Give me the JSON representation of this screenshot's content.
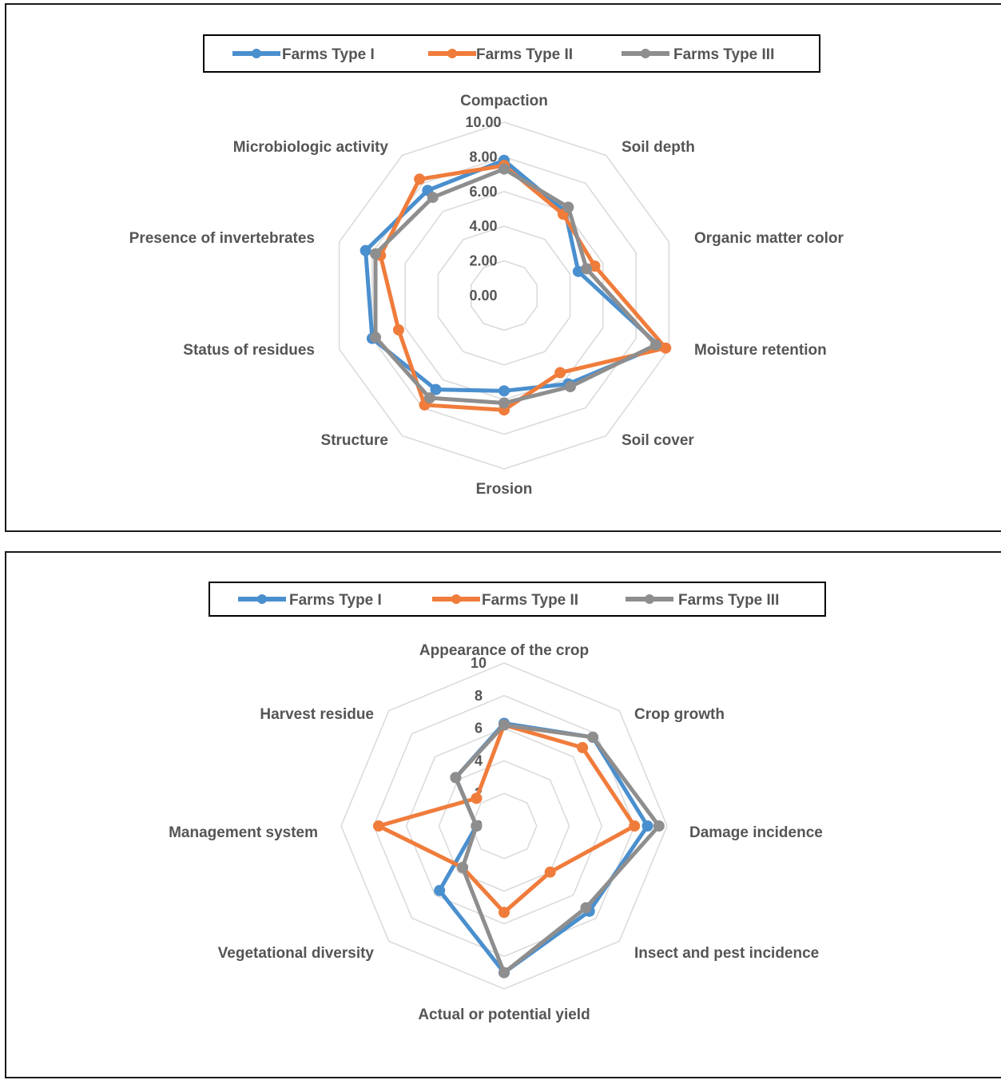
{
  "chart_data": [
    {
      "type": "radar",
      "legend_position": "top",
      "series": [
        {
          "name": "Farms Type I",
          "color": "#4a8fce",
          "values": [
            7.8,
            6.0,
            4.5,
            9.4,
            6.3,
            5.5,
            6.7,
            8.0,
            8.4,
            7.5
          ]
        },
        {
          "name": "Farms Type II",
          "color": "#f07c3b",
          "values": [
            7.5,
            5.8,
            5.5,
            9.8,
            5.5,
            6.6,
            7.8,
            6.4,
            7.5,
            8.3
          ]
        },
        {
          "name": "Farms Type III",
          "color": "#8e8e8e",
          "values": [
            7.3,
            6.3,
            5.0,
            9.2,
            6.5,
            6.2,
            7.3,
            7.8,
            7.8,
            7.0
          ]
        }
      ],
      "categories": [
        "Compaction",
        "Soil depth",
        "Organic matter color",
        "Moisture retention",
        "Soil cover",
        "Erosion",
        "Structure",
        "Status of residues",
        "Presence of invertebrates",
        "Microbiologic activity"
      ],
      "ticks": [
        "0.00",
        "2.00",
        "4.00",
        "6.00",
        "8.00",
        "10.00"
      ],
      "ylim": [
        0,
        10
      ]
    },
    {
      "type": "radar",
      "legend_position": "top",
      "series": [
        {
          "name": "Farms Type I",
          "color": "#4a8fce",
          "values": [
            6.3,
            7.7,
            8.8,
            7.4,
            9.0,
            5.6,
            1.7,
            4.2
          ]
        },
        {
          "name": "Farms Type II",
          "color": "#f07c3b",
          "values": [
            6.2,
            6.8,
            8.0,
            4.0,
            5.3,
            3.6,
            7.7,
            2.4
          ]
        },
        {
          "name": "Farms Type III",
          "color": "#8e8e8e",
          "values": [
            6.2,
            7.7,
            9.5,
            7.1,
            9.0,
            3.6,
            1.7,
            4.2
          ]
        }
      ],
      "categories": [
        "Appearance of the crop",
        "Crop growth",
        "Damage incidence",
        "Insect and pest incidence",
        "Actual or potential yield",
        "Vegetational diversity",
        "Management system",
        "Harvest residue"
      ],
      "ticks": [
        "0",
        "2",
        "4",
        "6",
        "8",
        "10"
      ],
      "ylim": [
        0,
        10
      ]
    }
  ]
}
